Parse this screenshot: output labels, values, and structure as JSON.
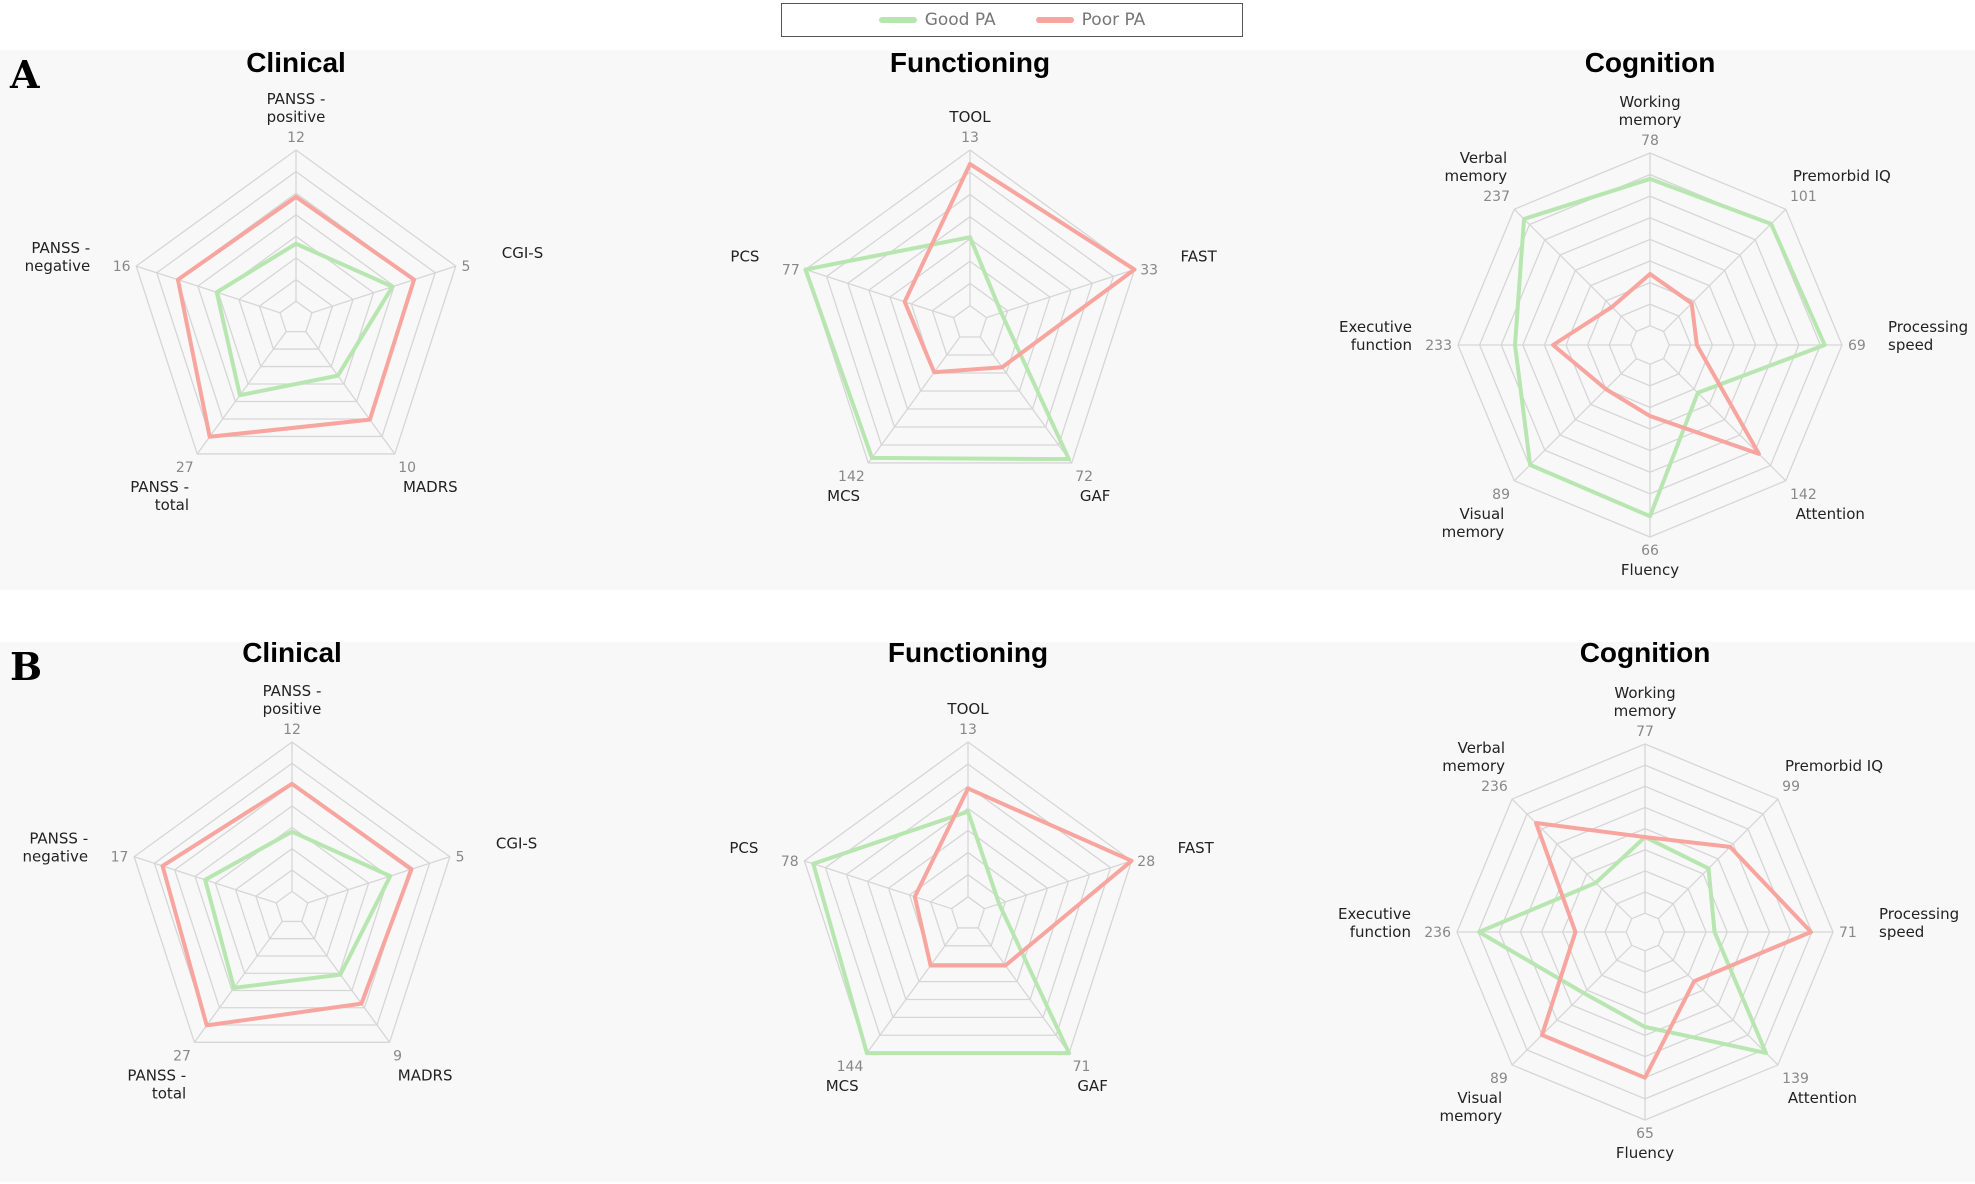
{
  "legend": [
    {
      "name": "Good PA",
      "color": "#b8e6b0"
    },
    {
      "name": "Poor PA",
      "color": "#f7a59e"
    }
  ],
  "chart_data": [
    {
      "type": "radar",
      "panel": "A",
      "title": "Clinical",
      "rings": 7,
      "axes": [
        {
          "label": [
            "PANSS -",
            "positive"
          ],
          "max": "12"
        },
        {
          "label": [
            "CGI-S"
          ],
          "max": "5"
        },
        {
          "label": [
            "MADRS"
          ],
          "max": "10"
        },
        {
          "label": [
            "PANSS -",
            "total"
          ],
          "max": "27"
        },
        {
          "label": [
            "PANSS -",
            "negative"
          ],
          "max": "16"
        }
      ],
      "series": [
        {
          "name": "Good PA",
          "relative_values": [
            0.38,
            0.56,
            0.36,
            0.52,
            0.44
          ]
        },
        {
          "name": "Poor PA",
          "relative_values": [
            0.69,
            0.71,
            0.72,
            0.86,
            0.71
          ]
        }
      ]
    },
    {
      "type": "radar",
      "panel": "A",
      "title": "Functioning",
      "rings": 7,
      "axes": [
        {
          "label": [
            "TOOL"
          ],
          "max": "13"
        },
        {
          "label": [
            "FAST"
          ],
          "max": "33"
        },
        {
          "label": [
            "GAF"
          ],
          "max": "72"
        },
        {
          "label": [
            "MCS"
          ],
          "max": "142"
        },
        {
          "label": [
            "PCS"
          ],
          "max": "77"
        }
      ],
      "series": [
        {
          "name": "Good PA",
          "relative_values": [
            0.44,
            0.1,
            0.97,
            0.96,
            1.0
          ]
        },
        {
          "name": "Poor PA",
          "relative_values": [
            0.91,
            1.0,
            0.24,
            0.28,
            0.33
          ]
        }
      ]
    },
    {
      "type": "radar",
      "panel": "A",
      "title": "Cognition",
      "rings": 8,
      "axes": [
        {
          "label": [
            "Working",
            "memory"
          ],
          "max": "78"
        },
        {
          "label": [
            "Premorbid IQ"
          ],
          "max": "101"
        },
        {
          "label": [
            "Processing",
            "speed"
          ],
          "max": "69"
        },
        {
          "label": [
            "Attention"
          ],
          "max": "142"
        },
        {
          "label": [
            "Fluency"
          ],
          "max": "66"
        },
        {
          "label": [
            "Visual",
            "memory"
          ],
          "max": "89"
        },
        {
          "label": [
            "Executive",
            "function"
          ],
          "max": "233"
        },
        {
          "label": [
            "Verbal",
            "memory"
          ],
          "max": "237"
        }
      ],
      "series": [
        {
          "name": "Good PA",
          "relative_values": [
            0.85,
            0.88,
            0.9,
            0.28,
            0.88,
            0.87,
            0.67,
            0.92
          ]
        },
        {
          "name": "Poor PA",
          "relative_values": [
            0.3,
            0.23,
            0.16,
            0.78,
            0.3,
            0.25,
            0.45,
            0.2
          ]
        }
      ]
    },
    {
      "type": "radar",
      "panel": "B",
      "title": "Clinical",
      "rings": 7,
      "axes": [
        {
          "label": [
            "PANSS -",
            "positive"
          ],
          "max": "12"
        },
        {
          "label": [
            "CGI-S"
          ],
          "max": "5"
        },
        {
          "label": [
            "MADRS"
          ],
          "max": "9"
        },
        {
          "label": [
            "PANSS -",
            "total"
          ],
          "max": "27"
        },
        {
          "label": [
            "PANSS -",
            "negative"
          ],
          "max": "17"
        }
      ],
      "series": [
        {
          "name": "Good PA",
          "relative_values": [
            0.4,
            0.58,
            0.44,
            0.55,
            0.5
          ]
        },
        {
          "name": "Poor PA",
          "relative_values": [
            0.72,
            0.73,
            0.68,
            0.86,
            0.8
          ]
        }
      ]
    },
    {
      "type": "radar",
      "panel": "B",
      "title": "Functioning",
      "rings": 7,
      "axes": [
        {
          "label": [
            "TOOL"
          ],
          "max": "13"
        },
        {
          "label": [
            "FAST"
          ],
          "max": "28"
        },
        {
          "label": [
            "GAF"
          ],
          "max": "71"
        },
        {
          "label": [
            "MCS"
          ],
          "max": "144"
        },
        {
          "label": [
            "PCS"
          ],
          "max": "78"
        }
      ],
      "series": [
        {
          "name": "Good PA",
          "relative_values": [
            0.55,
            0.1,
            1.0,
            1.0,
            0.94
          ]
        },
        {
          "name": "Poor PA",
          "relative_values": [
            0.7,
            1.0,
            0.3,
            0.3,
            0.25
          ]
        }
      ]
    },
    {
      "type": "radar",
      "panel": "B",
      "title": "Cognition",
      "rings": 8,
      "axes": [
        {
          "label": [
            "Working",
            "memory"
          ],
          "max": "77"
        },
        {
          "label": [
            "Premorbid IQ"
          ],
          "max": "99"
        },
        {
          "label": [
            "Processing",
            "speed"
          ],
          "max": "71"
        },
        {
          "label": [
            "Attention"
          ],
          "max": "139"
        },
        {
          "label": [
            "Fluency"
          ],
          "max": "65"
        },
        {
          "label": [
            "Visual",
            "memory"
          ],
          "max": "89"
        },
        {
          "label": [
            "Executive",
            "function"
          ],
          "max": "236"
        },
        {
          "label": [
            "Verbal",
            "memory"
          ],
          "max": "236"
        }
      ],
      "series": [
        {
          "name": "Good PA",
          "relative_values": [
            0.45,
            0.42,
            0.3,
            0.9,
            0.45,
            0.4,
            0.87,
            0.3
          ]
        },
        {
          "name": "Poor PA",
          "relative_values": [
            0.45,
            0.6,
            0.87,
            0.3,
            0.75,
            0.75,
            0.3,
            0.8
          ]
        }
      ]
    }
  ]
}
